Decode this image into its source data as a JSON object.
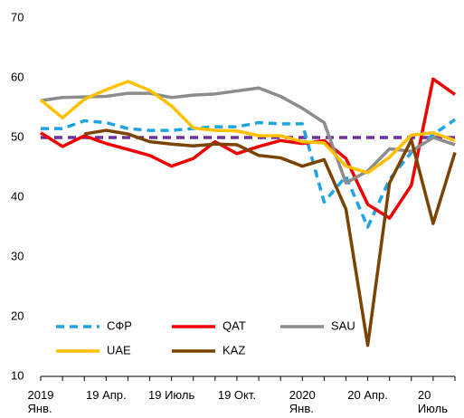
{
  "chart_data": {
    "type": "line",
    "categories": [
      "2019\nЯнв.",
      null,
      null,
      "19 Апр.",
      null,
      null,
      "19 Июль",
      null,
      null,
      "19 Окт.",
      null,
      null,
      "2020\nЯнв.",
      null,
      null,
      "20 Апр.",
      null,
      null,
      "20 Июль",
      null
    ],
    "series": [
      {
        "name": "СФР",
        "color": "#1ea4e2",
        "style": "dashed",
        "values": [
          51.5,
          51.5,
          52.8,
          52.5,
          51.5,
          51.2,
          51.2,
          51.5,
          51.8,
          51.8,
          52.5,
          52.3,
          52.3,
          39.2,
          43.5,
          35.0,
          43.0,
          47.5,
          50.5,
          53.0
        ]
      },
      {
        "name": "QAT",
        "color": "#f00000",
        "style": "solid",
        "values": [
          50.8,
          48.5,
          50.3,
          49.0,
          48.0,
          47.0,
          45.2,
          46.5,
          49.3,
          47.3,
          48.5,
          49.5,
          49.0,
          49.5,
          46.5,
          38.8,
          36.5,
          42.0,
          59.8,
          57.2
        ]
      },
      {
        "name": "SAU",
        "color": "#8c8c8c",
        "style": "solid",
        "values": [
          56.2,
          56.7,
          56.8,
          56.9,
          57.4,
          57.4,
          56.7,
          57.1,
          57.3,
          57.8,
          58.3,
          56.9,
          54.9,
          52.5,
          42.4,
          44.4,
          48.1,
          47.7,
          50.0,
          48.8
        ]
      },
      {
        "name": "UAE",
        "color": "#ffc000",
        "style": "solid",
        "values": [
          56.3,
          53.3,
          56.4,
          58.0,
          59.4,
          57.9,
          55.3,
          51.6,
          51.2,
          51.1,
          50.3,
          50.3,
          49.3,
          49.1,
          45.2,
          44.1,
          46.7,
          50.4,
          50.8,
          49.5
        ]
      },
      {
        "name": "KAZ",
        "color": "#7b4300",
        "style": "solid",
        "values": [
          null,
          null,
          50.6,
          51.2,
          50.6,
          49.3,
          48.9,
          48.6,
          48.9,
          48.8,
          47.0,
          46.6,
          45.2,
          46.3,
          38.0,
          15.2,
          42.4,
          49.6,
          35.6,
          47.5
        ]
      }
    ],
    "reference_line": {
      "value": 50,
      "color": "#7030a0",
      "style": "dashed"
    },
    "ylim": [
      10,
      70
    ],
    "yticks": [
      10,
      20,
      30,
      40,
      50,
      60,
      70
    ],
    "grid": false,
    "legend": "lower left"
  }
}
